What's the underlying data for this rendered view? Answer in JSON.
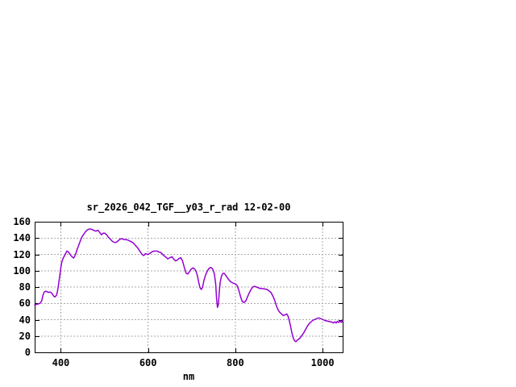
{
  "window": {
    "background": "#ffffff"
  },
  "chart_data": {
    "type": "line",
    "title": "sr_2026_042_TGF__y03_r_rad 12-02-00",
    "xlabel": "nm",
    "ylabel": "",
    "xlim": [
      340,
      1046
    ],
    "ylim": [
      0,
      160
    ],
    "xticks": [
      400,
      600,
      800,
      1000
    ],
    "yticks": [
      0,
      20,
      40,
      60,
      80,
      100,
      120,
      140,
      160
    ],
    "grid": true,
    "legend_position": "none",
    "line_color": "#9400d3",
    "grid_color": "#aaaaaa",
    "axis_color": "#000000",
    "series": [
      {
        "points": [
          [
            340,
            58
          ],
          [
            346,
            59
          ],
          [
            352,
            60
          ],
          [
            356,
            63
          ],
          [
            359,
            70
          ],
          [
            362,
            74
          ],
          [
            366,
            75
          ],
          [
            369,
            74
          ],
          [
            372,
            73.5
          ],
          [
            375,
            74
          ],
          [
            378,
            73
          ],
          [
            381,
            71
          ],
          [
            384,
            68.5
          ],
          [
            387,
            68
          ],
          [
            390,
            70
          ],
          [
            392,
            74
          ],
          [
            394,
            80
          ],
          [
            396,
            88
          ],
          [
            398,
            96
          ],
          [
            400,
            104
          ],
          [
            402,
            110
          ],
          [
            405,
            115
          ],
          [
            408,
            118
          ],
          [
            411,
            121
          ],
          [
            414,
            124
          ],
          [
            417,
            123
          ],
          [
            420,
            121
          ],
          [
            423,
            118.5
          ],
          [
            426,
            117
          ],
          [
            429,
            115.5
          ],
          [
            432,
            118
          ],
          [
            435,
            122
          ],
          [
            438,
            127
          ],
          [
            441,
            131
          ],
          [
            445,
            137
          ],
          [
            449,
            142
          ],
          [
            453,
            145
          ],
          [
            457,
            148
          ],
          [
            461,
            150
          ],
          [
            465,
            151
          ],
          [
            469,
            151
          ],
          [
            473,
            150
          ],
          [
            477,
            149
          ],
          [
            481,
            148.5
          ],
          [
            485,
            149.5
          ],
          [
            489,
            147
          ],
          [
            493,
            144
          ],
          [
            497,
            146
          ],
          [
            501,
            146
          ],
          [
            505,
            144
          ],
          [
            509,
            141
          ],
          [
            513,
            139
          ],
          [
            517,
            136.5
          ],
          [
            521,
            135
          ],
          [
            525,
            134.5
          ],
          [
            529,
            135.5
          ],
          [
            533,
            137.5
          ],
          [
            537,
            139
          ],
          [
            541,
            139
          ],
          [
            546,
            138
          ],
          [
            551,
            138
          ],
          [
            556,
            137
          ],
          [
            561,
            135.5
          ],
          [
            566,
            134
          ],
          [
            571,
            131
          ],
          [
            576,
            128
          ],
          [
            581,
            124
          ],
          [
            586,
            120
          ],
          [
            590,
            118.5
          ],
          [
            594,
            121
          ],
          [
            598,
            120
          ],
          [
            602,
            120.5
          ],
          [
            606,
            122
          ],
          [
            610,
            123.5
          ],
          [
            615,
            124
          ],
          [
            620,
            124
          ],
          [
            625,
            123
          ],
          [
            630,
            122
          ],
          [
            635,
            119
          ],
          [
            640,
            117
          ],
          [
            645,
            114.5
          ],
          [
            650,
            116
          ],
          [
            655,
            117
          ],
          [
            659,
            114
          ],
          [
            663,
            112
          ],
          [
            667,
            113
          ],
          [
            671,
            115
          ],
          [
            675,
            116
          ],
          [
            679,
            112
          ],
          [
            683,
            104
          ],
          [
            687,
            97
          ],
          [
            691,
            96
          ],
          [
            695,
            99
          ],
          [
            699,
            102
          ],
          [
            703,
            103.5
          ],
          [
            707,
            102
          ],
          [
            710,
            99
          ],
          [
            713,
            94
          ],
          [
            716,
            86
          ],
          [
            719,
            79
          ],
          [
            722,
            77
          ],
          [
            725,
            80
          ],
          [
            728,
            88
          ],
          [
            732,
            95
          ],
          [
            736,
            100
          ],
          [
            740,
            103
          ],
          [
            744,
            104
          ],
          [
            748,
            102
          ],
          [
            752,
            96
          ],
          [
            755,
            84
          ],
          [
            757,
            66
          ],
          [
            759,
            55
          ],
          [
            761,
            58
          ],
          [
            763,
            73
          ],
          [
            765,
            85
          ],
          [
            768,
            93
          ],
          [
            771,
            96.5
          ],
          [
            774,
            97
          ],
          [
            777,
            95
          ],
          [
            781,
            92
          ],
          [
            785,
            89
          ],
          [
            789,
            86.5
          ],
          [
            794,
            85
          ],
          [
            799,
            84
          ],
          [
            804,
            82
          ],
          [
            808,
            76
          ],
          [
            812,
            68
          ],
          [
            816,
            62
          ],
          [
            820,
            61
          ],
          [
            824,
            63
          ],
          [
            828,
            68
          ],
          [
            832,
            73
          ],
          [
            836,
            77
          ],
          [
            840,
            80
          ],
          [
            844,
            81
          ],
          [
            848,
            80
          ],
          [
            853,
            79
          ],
          [
            858,
            78
          ],
          [
            863,
            78
          ],
          [
            868,
            77.5
          ],
          [
            873,
            77
          ],
          [
            878,
            75
          ],
          [
            882,
            73
          ],
          [
            886,
            69
          ],
          [
            890,
            64
          ],
          [
            894,
            57
          ],
          [
            898,
            52
          ],
          [
            902,
            49
          ],
          [
            906,
            47
          ],
          [
            910,
            45
          ],
          [
            914,
            46
          ],
          [
            918,
            47
          ],
          [
            921,
            44
          ],
          [
            924,
            38
          ],
          [
            927,
            31
          ],
          [
            930,
            23
          ],
          [
            933,
            17
          ],
          [
            936,
            14
          ],
          [
            939,
            13
          ],
          [
            942,
            15
          ],
          [
            945,
            16
          ],
          [
            949,
            18
          ],
          [
            953,
            21
          ],
          [
            957,
            24
          ],
          [
            961,
            28
          ],
          [
            965,
            32
          ],
          [
            969,
            35
          ],
          [
            973,
            37
          ],
          [
            977,
            39
          ],
          [
            981,
            40
          ],
          [
            985,
            41
          ],
          [
            989,
            42
          ],
          [
            993,
            42
          ],
          [
            997,
            41
          ],
          [
            1001,
            40
          ],
          [
            1005,
            39
          ],
          [
            1009,
            38.5
          ],
          [
            1013,
            38
          ],
          [
            1017,
            37.5
          ],
          [
            1021,
            37
          ],
          [
            1025,
            36
          ],
          [
            1028,
            37.5
          ],
          [
            1031,
            36
          ],
          [
            1034,
            38
          ],
          [
            1037,
            36.5
          ],
          [
            1040,
            38.5
          ],
          [
            1043,
            36.5
          ],
          [
            1046,
            39
          ]
        ]
      }
    ]
  }
}
